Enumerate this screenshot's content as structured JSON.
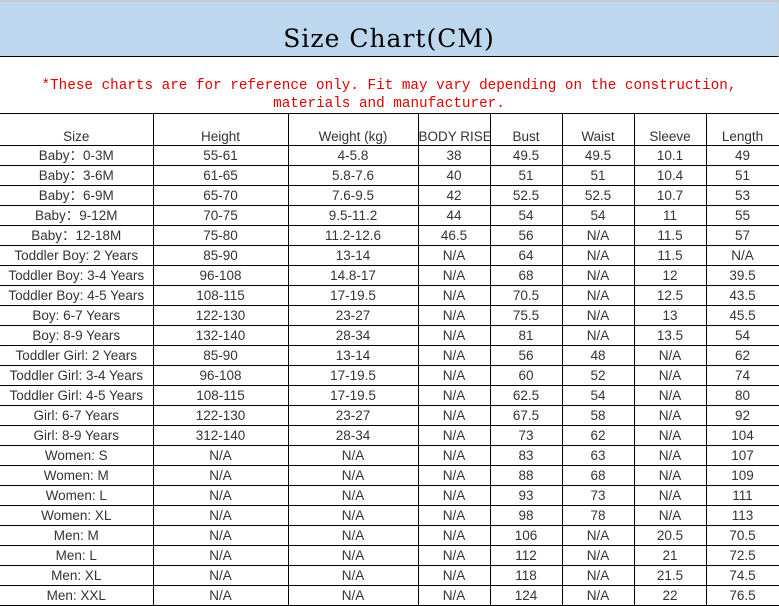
{
  "title": "Size Chart(CM)",
  "notice": "*These charts are for reference only. Fit may vary depending on the construction, materials and manufacturer.",
  "colors": {
    "title_band": "#bdd7ee",
    "notice_text": "#e00000"
  },
  "table": {
    "headers": [
      "Size",
      "Height",
      "Weight (kg)",
      "BODY RISE",
      "Bust",
      "Waist",
      "Sleeve",
      "Length"
    ],
    "rows": [
      [
        "Baby：0-3M",
        "55-61",
        "4-5.8",
        "38",
        "49.5",
        "49.5",
        "10.1",
        "49"
      ],
      [
        "Baby：3-6M",
        "61-65",
        "5.8-7.6",
        "40",
        "51",
        "51",
        "10.4",
        "51"
      ],
      [
        "Baby：6-9M",
        "65-70",
        "7.6-9.5",
        "42",
        "52.5",
        "52.5",
        "10.7",
        "53"
      ],
      [
        "Baby：9-12M",
        "70-75",
        "9.5-11.2",
        "44",
        "54",
        "54",
        "11",
        "55"
      ],
      [
        "Baby：12-18M",
        "75-80",
        "11.2-12.6",
        "46.5",
        "56",
        "N/A",
        "11.5",
        "57"
      ],
      [
        "Toddler Boy: 2 Years",
        "85-90",
        "13-14",
        "N/A",
        "64",
        "N/A",
        "11.5",
        "N/A"
      ],
      [
        "Toddler Boy: 3-4 Years",
        "96-108",
        "14.8-17",
        "N/A",
        "68",
        "N/A",
        "12",
        "39.5"
      ],
      [
        "Toddler Boy: 4-5 Years",
        "108-115",
        "17-19.5",
        "N/A",
        "70.5",
        "N/A",
        "12.5",
        "43.5"
      ],
      [
        "Boy: 6-7 Years",
        "122-130",
        "23-27",
        "N/A",
        "75.5",
        "N/A",
        "13",
        "45.5"
      ],
      [
        "Boy: 8-9 Years",
        "132-140",
        "28-34",
        "N/A",
        "81",
        "N/A",
        "13.5",
        "54"
      ],
      [
        "Toddler Girl: 2 Years",
        "85-90",
        "13-14",
        "N/A",
        "56",
        "48",
        "N/A",
        "62"
      ],
      [
        "Toddler Girl: 3-4 Years",
        "96-108",
        "17-19.5",
        "N/A",
        "60",
        "52",
        "N/A",
        "74"
      ],
      [
        "Toddler Girl: 4-5 Years",
        "108-115",
        "17-19.5",
        "N/A",
        "62.5",
        "54",
        "N/A",
        "80"
      ],
      [
        "Girl: 6-7 Years",
        "122-130",
        "23-27",
        "N/A",
        "67.5",
        "58",
        "N/A",
        "92"
      ],
      [
        "Girl: 8-9 Years",
        "312-140",
        "28-34",
        "N/A",
        "73",
        "62",
        "N/A",
        "104"
      ],
      [
        "Women: S",
        "N/A",
        "N/A",
        "N/A",
        "83",
        "63",
        "N/A",
        "107"
      ],
      [
        "Women: M",
        "N/A",
        "N/A",
        "N/A",
        "88",
        "68",
        "N/A",
        "109"
      ],
      [
        "Women: L",
        "N/A",
        "N/A",
        "N/A",
        "93",
        "73",
        "N/A",
        "111"
      ],
      [
        "Women: XL",
        "N/A",
        "N/A",
        "N/A",
        "98",
        "78",
        "N/A",
        "113"
      ],
      [
        "Men: M",
        "N/A",
        "N/A",
        "N/A",
        "106",
        "N/A",
        "20.5",
        "70.5"
      ],
      [
        "Men: L",
        "N/A",
        "N/A",
        "N/A",
        "112",
        "N/A",
        "21",
        "72.5"
      ],
      [
        "Men: XL",
        "N/A",
        "N/A",
        "N/A",
        "118",
        "N/A",
        "21.5",
        "74.5"
      ],
      [
        "Men: XXL",
        "N/A",
        "N/A",
        "N/A",
        "124",
        "N/A",
        "22",
        "76.5"
      ]
    ]
  }
}
